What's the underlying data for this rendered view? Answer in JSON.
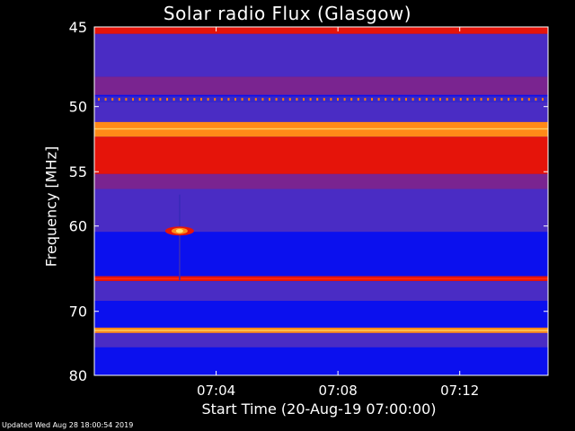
{
  "title": "Solar radio Flux (Glasgow)",
  "ylabel": "Frequency [MHz]",
  "xlabel": "Start Time (20-Aug-19 07:00:00)",
  "updated": "Updated Wed Aug 28 18:00:54 2019",
  "chart_data": {
    "type": "heatmap",
    "title": "Solar radio Flux (Glasgow)",
    "xlabel": "Start Time (20-Aug-19 07:00:00)",
    "ylabel": "Frequency [MHz]",
    "x_tick_labels": [
      "07:04",
      "07:08",
      "07:12"
    ],
    "x_tick_minutes": [
      4,
      8,
      12
    ],
    "xlim_minutes": [
      0,
      14.9
    ],
    "y_tick_labels": [
      "45",
      "50",
      "55",
      "60",
      "70",
      "80"
    ],
    "y_tick_values": [
      45,
      50,
      55,
      60,
      70,
      80
    ],
    "ylim": [
      45,
      80
    ],
    "y_scale": "reciprocal",
    "colors": {
      "background_low": "#0b10ee",
      "mid": "#4a2cc4",
      "high": "#e5140a",
      "peak": "#ffe070"
    },
    "bands": [
      {
        "from": 45,
        "to": 45.4,
        "level": "high"
      },
      {
        "from": 45.4,
        "to": 48,
        "level": "mid"
      },
      {
        "from": 48,
        "to": 49.2,
        "level": "mid-high"
      },
      {
        "from": 49.3,
        "to": 49.7,
        "level": "high-dotted"
      },
      {
        "from": 49.7,
        "to": 51.1,
        "level": "mid"
      },
      {
        "from": 51.1,
        "to": 52.2,
        "level": "peak"
      },
      {
        "from": 52.2,
        "to": 55.2,
        "level": "high"
      },
      {
        "from": 55.2,
        "to": 56.5,
        "level": "mid-high"
      },
      {
        "from": 56.5,
        "to": 60.6,
        "level": "mid"
      },
      {
        "from": 60.6,
        "to": 65.5,
        "level": "low"
      },
      {
        "from": 65.5,
        "to": 66.1,
        "level": "high"
      },
      {
        "from": 66.1,
        "to": 68.6,
        "level": "mid"
      },
      {
        "from": 68.6,
        "to": 72.3,
        "level": "low"
      },
      {
        "from": 72.3,
        "to": 73.1,
        "level": "peak"
      },
      {
        "from": 73.1,
        "to": 75.3,
        "level": "mid"
      },
      {
        "from": 75.3,
        "to": 80,
        "level": "low"
      }
    ],
    "burst": {
      "time_minute": 2.8,
      "freq_mhz": 60.5,
      "level": "peak"
    }
  }
}
